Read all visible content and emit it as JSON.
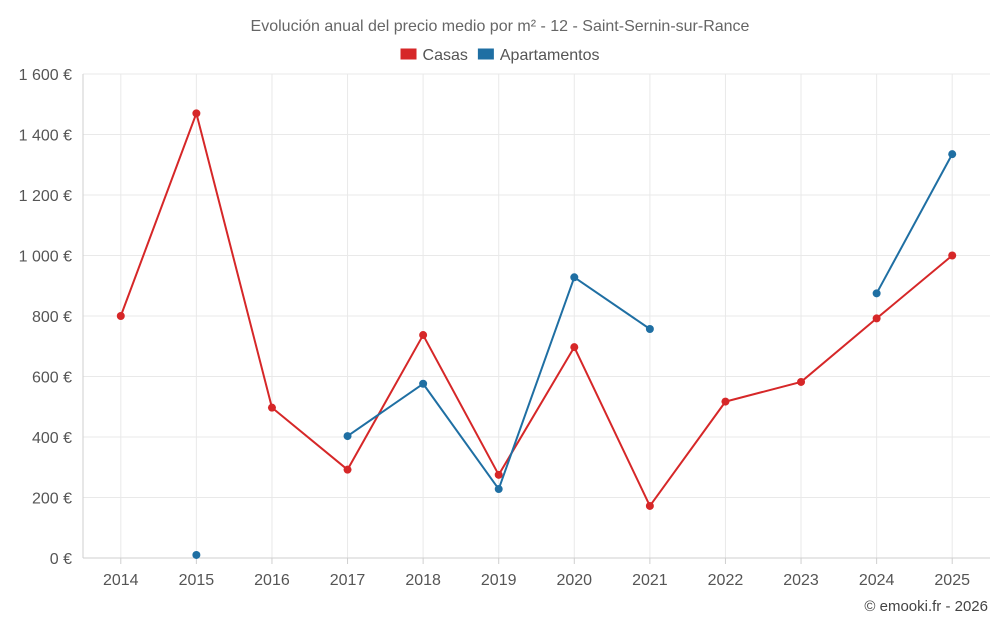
{
  "chart_data": {
    "type": "line",
    "title": "Evolución anual del precio medio por m² - 12 - Saint-Sernin-sur-Rance",
    "categories": [
      "2014",
      "2015",
      "2016",
      "2017",
      "2018",
      "2019",
      "2020",
      "2021",
      "2022",
      "2023",
      "2024",
      "2025"
    ],
    "ylim": [
      0,
      1600
    ],
    "yticks": [
      0,
      200,
      400,
      600,
      800,
      1000,
      1200,
      1400,
      1600
    ],
    "ytick_labels": [
      "0 €",
      "200 €",
      "400 €",
      "600 €",
      "800 €",
      "1 000 €",
      "1 200 €",
      "1 400 €",
      "1 600 €"
    ],
    "grid": true,
    "legend_position": "top-center",
    "series": [
      {
        "name": "Casas",
        "color": "#d62728",
        "values": [
          800,
          1470,
          497,
          292,
          737,
          275,
          697,
          172,
          517,
          582,
          792,
          1000
        ]
      },
      {
        "name": "Apartamentos",
        "color": "#1f6fa3",
        "values": [
          null,
          10,
          null,
          403,
          576,
          228,
          928,
          757,
          null,
          null,
          875,
          1335
        ]
      }
    ],
    "credit": "© emooki.fr - 2026"
  }
}
